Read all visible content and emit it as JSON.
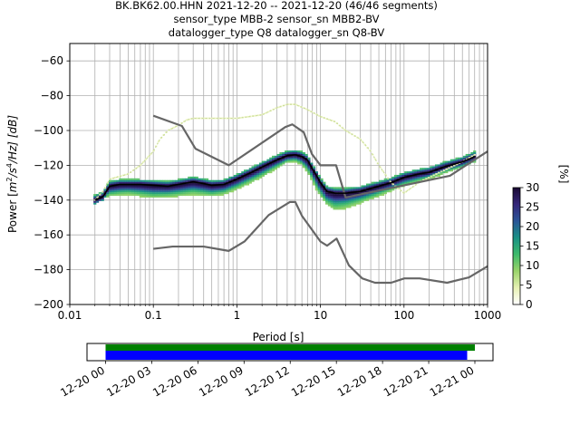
{
  "title": {
    "line1": "BK.BK62.00.HHN   2021-12-20 -- 2021-12-20  (46/46 segments)",
    "line2": "sensor_type MBB-2 sensor_sn MBB2-BV",
    "line3": "datalogger_type Q8 datalogger_sn Q8-BV"
  },
  "chart_data": [
    {
      "type": "heatmap",
      "xlabel": "Period [s]",
      "ylabel": "Power [m²/s⁴/Hz] [dB]",
      "ylabel_parts": {
        "pre": "Power [",
        "m": "m",
        "exp2": "2",
        "mid": "/s",
        "exp4": "4",
        "post": "/Hz] [dB]"
      },
      "xscale": "log",
      "xlim": [
        0.01,
        1000
      ],
      "ylim": [
        -200,
        -50
      ],
      "xticks": [
        0.01,
        0.1,
        1,
        10,
        100,
        1000
      ],
      "xtick_labels": [
        "0.01",
        "0.1",
        "1",
        "10",
        "100",
        "1000"
      ],
      "yticks": [
        -200,
        -180,
        -160,
        -140,
        -120,
        -100,
        -80,
        -60
      ],
      "ytick_labels": [
        "−200",
        "−180",
        "−160",
        "−140",
        "−120",
        "−100",
        "−80",
        "−60"
      ],
      "grid": true,
      "colorbar": {
        "label": "[%]",
        "range": [
          0,
          30
        ],
        "ticks": [
          0,
          5,
          10,
          15,
          20,
          25,
          30
        ],
        "tick_labels": [
          "0",
          "5",
          "10",
          "15",
          "20",
          "25",
          "30"
        ],
        "colors": [
          "#ffffff",
          "#e7f1b3",
          "#9ad46a",
          "#3dba6b",
          "#199185",
          "#2a5597",
          "#35267a",
          "#1a0a33"
        ]
      },
      "mean_curve": {
        "color": "#000000",
        "x": [
          0.02,
          0.025,
          0.03,
          0.04,
          0.05,
          0.07,
          0.1,
          0.15,
          0.2,
          0.3,
          0.4,
          0.5,
          0.7,
          1,
          1.5,
          2,
          3,
          4,
          5,
          6,
          7,
          8,
          9,
          10,
          12,
          15,
          20,
          30,
          50,
          70,
          100,
          150,
          200,
          300,
          500,
          700
        ],
        "y": [
          -140,
          -138,
          -132,
          -131,
          -131,
          -131,
          -131.5,
          -132,
          -131,
          -129.5,
          -130.5,
          -131.5,
          -131,
          -128,
          -124,
          -121,
          -117,
          -114.5,
          -114,
          -115,
          -117,
          -122,
          -126,
          -130,
          -135,
          -136,
          -136,
          -135,
          -132,
          -130,
          -127,
          -125,
          -124,
          -121,
          -118,
          -115
        ]
      },
      "percentile_low": {
        "color": "#a9cf7a",
        "x": [
          0.02,
          0.03,
          0.05,
          0.07,
          0.1,
          0.15,
          0.2,
          0.3,
          0.5,
          0.7,
          1,
          1.5,
          2,
          3,
          4,
          5,
          6,
          7,
          8,
          9,
          10,
          12,
          15,
          20,
          30,
          50,
          70,
          100,
          200,
          300,
          500,
          700
        ],
        "y": [
          -141,
          -138,
          -137,
          -138,
          -139,
          -138.5,
          -138,
          -137,
          -138,
          -137,
          -134,
          -130,
          -127,
          -122,
          -118.5,
          -118,
          -120,
          -124,
          -129,
          -134,
          -138,
          -143,
          -146,
          -145,
          -142,
          -138,
          -135,
          -132,
          -128,
          -125,
          -121,
          -118
        ]
      },
      "percentile_high": {
        "color": "#c9dc9a",
        "x": [
          0.02,
          0.025,
          0.03,
          0.05,
          0.07,
          0.1,
          0.12,
          0.15,
          0.2,
          0.25,
          0.3,
          0.5,
          1,
          2,
          3,
          4,
          5,
          7,
          10,
          15,
          20,
          30,
          40,
          50,
          70,
          100,
          150,
          200,
          300,
          500,
          700
        ],
        "y": [
          -140,
          -135,
          -128,
          -125,
          -120,
          -112,
          -105,
          -100,
          -97,
          -94,
          -93,
          -93,
          -93,
          -91,
          -87,
          -85,
          -85,
          -88,
          -92,
          -95,
          -100,
          -105,
          -112,
          -120,
          -130,
          -136,
          -130,
          -127,
          -123,
          -118,
          -114
        ]
      },
      "noise_models": [
        {
          "name": "NHNM",
          "color": "#666666",
          "x": [
            0.1,
            0.22,
            0.32,
            0.8,
            3.8,
            4.6,
            6.3,
            7.9,
            10,
            15.4,
            20,
            354.8,
            1000
          ],
          "y": [
            -91.5,
            -97.4,
            -110.5,
            -120,
            -98,
            -96.5,
            -101,
            -113.5,
            -120,
            -120,
            -138.5,
            -126,
            -112
          ]
        },
        {
          "name": "NLNM",
          "color": "#666666",
          "x": [
            0.1,
            0.17,
            0.4,
            0.8,
            1.24,
            2.4,
            4.3,
            5,
            6,
            10,
            12,
            15.6,
            21.9,
            31.6,
            45,
            70,
            101,
            154,
            328,
            600,
            1000
          ],
          "y": [
            -168,
            -166.7,
            -166.7,
            -169.2,
            -163.7,
            -148.6,
            -141.1,
            -141.1,
            -149,
            -163.8,
            -166.2,
            -162.1,
            -177.5,
            -185,
            -187.5,
            -187.5,
            -185,
            -185,
            -187.5,
            -184.4,
            -178
          ]
        }
      ]
    },
    {
      "type": "bar",
      "xlabel": "",
      "ylabel": "",
      "xlim": [
        "12-20 00",
        "12-21 00"
      ],
      "xtick_labels": [
        "12-20 00",
        "12-20 03",
        "12-20 06",
        "12-20 09",
        "12-20 12",
        "12-20 15",
        "12-20 18",
        "12-20 21",
        "12-21 00"
      ],
      "series": [
        {
          "color": "#008000",
          "start": 0.0,
          "end": 24.0
        },
        {
          "color": "#0000ff",
          "start": 0.0,
          "end": 23.5
        }
      ]
    }
  ]
}
